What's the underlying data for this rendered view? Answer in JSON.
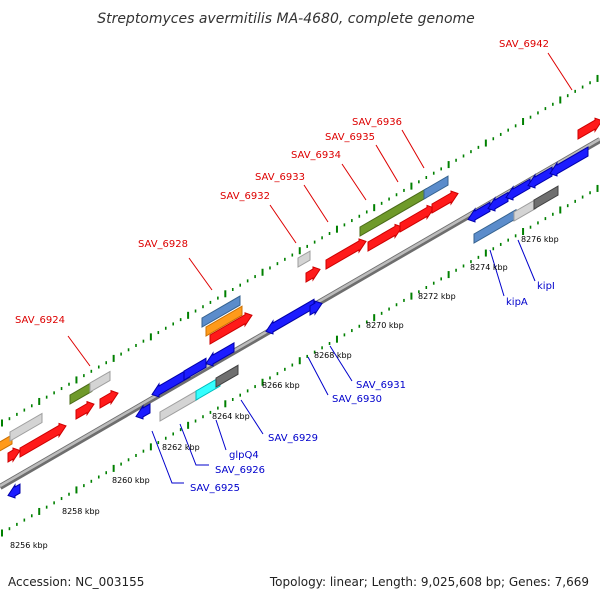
{
  "title": "Streptomyces avermitilis MA-4680, complete genome",
  "footer": {
    "accession": "Accession: NC_003155",
    "topology": "Topology: linear; Length: 9,025,608 bp; Genes: 7,669"
  },
  "colors": {
    "background": "#ffffff",
    "backbone": "#8c8c8c",
    "title_text": "#333333",
    "footer_text": "#222222",
    "label_red": "#dd0000",
    "label_blue": "#0000cc",
    "tick_green": "#008000",
    "scale_text": "#000000"
  },
  "scale_labels": [
    "8256 kbp",
    "8258 kbp",
    "8260 kbp",
    "8262 kbp",
    "8264 kbp",
    "8266 kbp",
    "8268 kbp",
    "8270 kbp",
    "8272 kbp",
    "8274 kbp",
    "8276 kbp"
  ],
  "gene_labels_top": [
    "SAV_6924",
    "SAV_6928",
    "SAV_6932",
    "SAV_6933",
    "SAV_6934",
    "SAV_6935",
    "SAV_6936",
    "SAV_6942"
  ],
  "gene_labels_bottom": [
    "SAV_6925",
    "SAV_6926",
    "glpQ4",
    "SAV_6929",
    "SAV_6930",
    "SAV_6931",
    "kipA",
    "kipI"
  ],
  "gene_color_names": [
    "red",
    "blue",
    "light-grey",
    "dark-grey",
    "olive-green",
    "steel-blue",
    "orange",
    "cyan"
  ]
}
